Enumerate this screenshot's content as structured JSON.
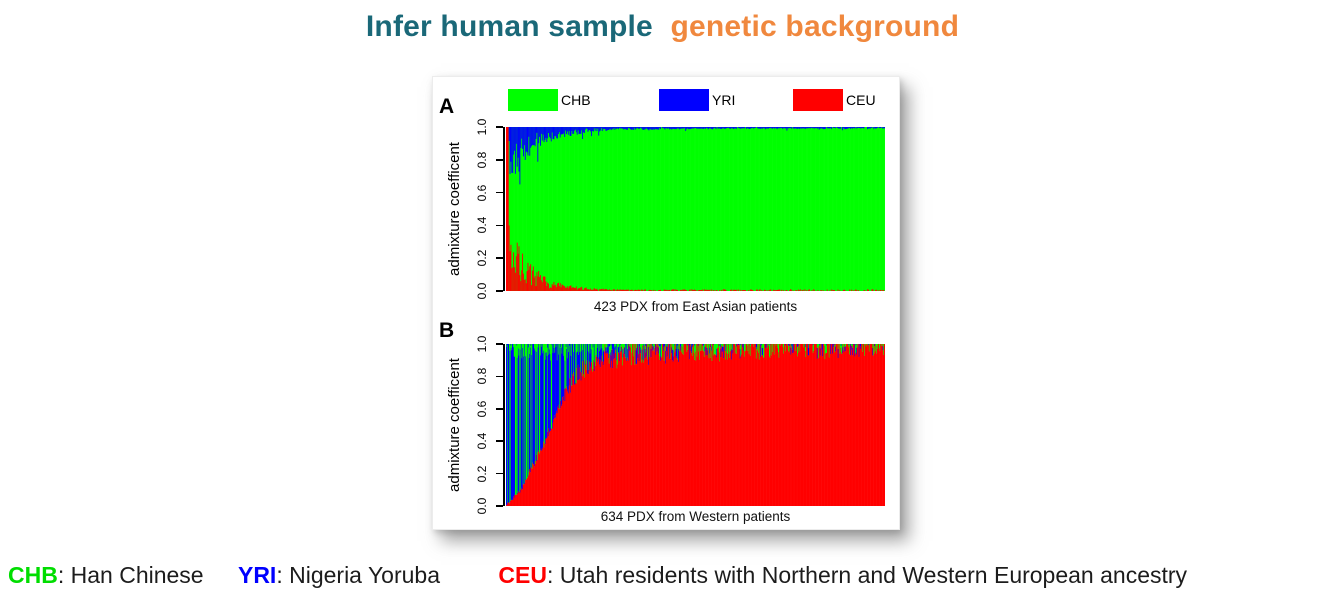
{
  "title": {
    "part1": "Infer human sample",
    "part2": "genetic background",
    "part1_color": "#1A6878",
    "part2_color": "#F0883E"
  },
  "legend": {
    "items": [
      {
        "label": "CHB",
        "color": "#00FF00"
      },
      {
        "label": "YRI",
        "color": "#0000FF"
      },
      {
        "label": "CEU",
        "color": "#FF0000"
      }
    ]
  },
  "footnote": {
    "items": [
      {
        "abbr": "CHB",
        "desc": ": Han Chinese",
        "color": "#00DD00"
      },
      {
        "abbr": "YRI",
        "desc": ": Nigeria Yoruba",
        "color": "#0000FF"
      },
      {
        "abbr": "CEU",
        "desc": ": Utah residents with Northern and Western European ancestry",
        "color": "#FF0000"
      }
    ]
  },
  "chart_data": {
    "type": "bar",
    "subtype": "stacked-admixture",
    "ylabel": "admixture coefficent",
    "yticks": [
      0.0,
      0.2,
      0.4,
      0.6,
      0.8,
      1.0
    ],
    "ylim": [
      0,
      1
    ],
    "grid": false,
    "legend_position": "top",
    "populations": {
      "CHB": "#00FF00",
      "YRI": "#0000FF",
      "CEU": "#FF0000"
    },
    "panels": [
      {
        "label": "A",
        "caption": "423 PDX from East Asian patients",
        "n_samples": 423,
        "dominant": "CHB",
        "full_CEU_bars": 3,
        "YRI_top_profile": [
          [
            0.005,
            0.24
          ],
          [
            0.02,
            0.2
          ],
          [
            0.05,
            0.13
          ],
          [
            0.1,
            0.07
          ],
          [
            0.15,
            0.04
          ],
          [
            0.22,
            0.02
          ],
          [
            0.3,
            0.012
          ],
          [
            0.5,
            0.008
          ],
          [
            1.0,
            0.006
          ]
        ],
        "CEU_bottom_profile": [
          [
            0.005,
            0.3
          ],
          [
            0.02,
            0.22
          ],
          [
            0.05,
            0.12
          ],
          [
            0.1,
            0.055
          ],
          [
            0.15,
            0.025
          ],
          [
            0.22,
            0.012
          ],
          [
            0.3,
            0.006
          ],
          [
            0.5,
            0.004
          ],
          [
            1.0,
            0.003
          ]
        ],
        "seed": 7
      },
      {
        "label": "B",
        "caption": "634 PDX from Western patients",
        "n_samples": 634,
        "dominant": "CEU",
        "CEU_profile": [
          [
            0,
            0.01
          ],
          [
            0.01,
            0.03
          ],
          [
            0.04,
            0.1
          ],
          [
            0.07,
            0.25
          ],
          [
            0.1,
            0.38
          ],
          [
            0.13,
            0.55
          ],
          [
            0.16,
            0.72
          ],
          [
            0.19,
            0.82
          ],
          [
            0.22,
            0.87
          ],
          [
            0.26,
            0.905
          ],
          [
            0.32,
            0.93
          ],
          [
            0.4,
            0.95
          ],
          [
            0.55,
            0.965
          ],
          [
            0.75,
            0.98
          ],
          [
            1.0,
            0.99
          ]
        ],
        "YRI_share_profile": [
          [
            0,
            0.6
          ],
          [
            0.06,
            0.68
          ],
          [
            0.12,
            0.72
          ],
          [
            0.2,
            0.62
          ],
          [
            0.3,
            0.45
          ],
          [
            0.5,
            0.38
          ],
          [
            1.0,
            0.33
          ]
        ],
        "seed": 13
      }
    ]
  }
}
